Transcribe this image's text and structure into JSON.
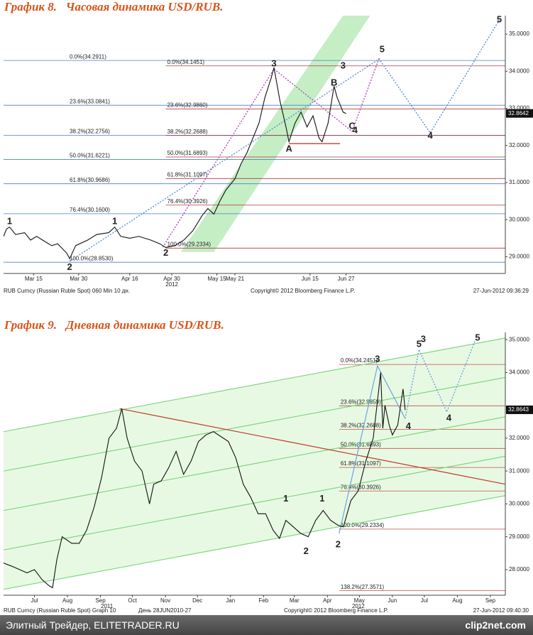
{
  "chart_data": [
    {
      "type": "line",
      "title": "График 8.   Часовая динамика USD/RUB.",
      "xlim": [
        "2012-03-05",
        "2012-08-19"
      ],
      "ylim": [
        28.55,
        35.5
      ],
      "xticks": [
        {
          "value": "2012-03-15",
          "label": "Mar 15"
        },
        {
          "value": "2012-03-30",
          "label": "Mar 30"
        },
        {
          "value": "2012-04-16",
          "label": "Apr 16"
        },
        {
          "value": "2012-04-30",
          "label": "Apr 30"
        },
        {
          "value": "2012-05-15",
          "label": "May 15"
        },
        {
          "value": "2012-05-21",
          "label": "May 21"
        },
        {
          "value": "2012-06-15",
          "label": "Jun 15"
        },
        {
          "value": "2012-06-27",
          "label": "Jun 27"
        }
      ],
      "x_sublabels": [
        {
          "value": "2012-04-30",
          "label": "2012"
        }
      ],
      "yticks": [
        {
          "value": 29,
          "label": "29.0000"
        },
        {
          "value": 30,
          "label": "30.0000"
        },
        {
          "value": 31,
          "label": "31.0000"
        },
        {
          "value": 32,
          "label": "32.0000"
        },
        {
          "value": 33,
          "label": "33.0000"
        },
        {
          "value": 34,
          "label": "34.0000"
        },
        {
          "value": 35,
          "label": "35.0000"
        }
      ],
      "color": "#111111",
      "last_value": 32.8642,
      "x": [
        "2012-03-05",
        "2012-03-06",
        "2012-03-07",
        "2012-03-09",
        "2012-03-12",
        "2012-03-14",
        "2012-03-16",
        "2012-03-19",
        "2012-03-21",
        "2012-03-23",
        "2012-03-26",
        "2012-03-27",
        "2012-03-29",
        "2012-04-02",
        "2012-04-05",
        "2012-04-09",
        "2012-04-11",
        "2012-04-13",
        "2012-04-16",
        "2012-04-19",
        "2012-04-23",
        "2012-04-26",
        "2012-04-28",
        "2012-05-01",
        "2012-05-04",
        "2012-05-07",
        "2012-05-10",
        "2012-05-12",
        "2012-05-14",
        "2012-05-16",
        "2012-05-18",
        "2012-05-21",
        "2012-05-23",
        "2012-05-25",
        "2012-05-27",
        "2012-05-29",
        "2012-05-31",
        "2012-06-02",
        "2012-06-03",
        "2012-06-05",
        "2012-06-07",
        "2012-06-08",
        "2012-06-10",
        "2012-06-12",
        "2012-06-14",
        "2012-06-16",
        "2012-06-18",
        "2012-06-19",
        "2012-06-21",
        "2012-06-23",
        "2012-06-24",
        "2012-06-25",
        "2012-06-26",
        "2012-06-27"
      ],
      "values": [
        29.55,
        29.75,
        29.8,
        29.6,
        29.65,
        29.45,
        29.55,
        29.4,
        29.3,
        29.35,
        29.1,
        28.95,
        29.3,
        29.45,
        29.6,
        29.65,
        29.8,
        29.55,
        29.5,
        29.55,
        29.45,
        29.35,
        29.25,
        29.3,
        29.45,
        29.7,
        30.1,
        30.3,
        30.15,
        30.5,
        30.8,
        31.1,
        31.5,
        31.8,
        32.2,
        32.6,
        33.3,
        33.8,
        34.1,
        33.2,
        32.5,
        32.1,
        32.6,
        32.9,
        32.5,
        32.8,
        32.2,
        32.1,
        32.6,
        33.6,
        33.3,
        33.1,
        32.9,
        32.86
      ],
      "channel": {
        "color": "#9fe39f",
        "x": [
          "2012-05-03",
          "2012-06-26",
          "2012-07-05",
          "2012-05-14"
        ],
        "values": [
          29.13,
          35.5,
          35.5,
          29.13
        ]
      },
      "hlines": [
        {
          "value": 34.2911,
          "label": "0.0%(34.2911)",
          "color": "#4a7fc8"
        },
        {
          "value": 33.0841,
          "label": "23.6%(33.0841)",
          "color": "#4a7fc8"
        },
        {
          "value": 32.2756,
          "label": "38.2%(32.2756)",
          "color": "#4a7fc8"
        },
        {
          "value": 31.6221,
          "label": "50.0%(31.6221)",
          "color": "#4a7fc8"
        },
        {
          "value": 30.9686,
          "label": "61.8%(30.9686)",
          "color": "#4a7fc8"
        },
        {
          "value": 30.16,
          "label": "76.4%(30.1600)",
          "color": "#4a7fc8"
        },
        {
          "value": 28.853,
          "label": "100.0%(28.8530)",
          "color": "#4a7fc8"
        },
        {
          "value": 34.1451,
          "label": "0.0%(34.1451)",
          "color": "#b03a3a",
          "from": "2012-04-28"
        },
        {
          "value": 32.986,
          "label": "23.6%(32.9860)",
          "color": "#b03a3a",
          "from": "2012-04-28"
        },
        {
          "value": 32.2688,
          "label": "38.2%(32.2688)",
          "color": "#b03a3a",
          "from": "2012-04-28"
        },
        {
          "value": 31.6893,
          "label": "50.0%(31.6893)",
          "color": "#b03a3a",
          "from": "2012-04-28"
        },
        {
          "value": 31.1097,
          "label": "61.8%(31.1097)",
          "color": "#b03a3a",
          "from": "2012-04-28"
        },
        {
          "value": 30.3926,
          "label": "76.4%(30.3926)",
          "color": "#b03a3a",
          "from": "2012-04-28"
        },
        {
          "value": 29.2334,
          "label": "100.0%(29.2334)",
          "color": "#b03a3a",
          "from": "2012-04-28"
        }
      ],
      "lines": [
        {
          "color": "#5b8fd6",
          "dash": true,
          "x": [
            "2012-03-27",
            "2012-07-08",
            "2012-07-25",
            "2012-08-17"
          ],
          "values": [
            28.88,
            34.33,
            32.34,
            35.38
          ]
        },
        {
          "color": "#b24ab2",
          "dash": true,
          "x": [
            "2012-04-27",
            "2012-06-03",
            "2012-06-29",
            "2012-07-08"
          ],
          "values": [
            29.26,
            34.06,
            32.38,
            34.35
          ]
        },
        {
          "color": "#c01010",
          "dash": false,
          "x": [
            "2012-06-08",
            "2012-06-25"
          ],
          "values": [
            32.05,
            32.05
          ]
        }
      ],
      "annotations": [
        {
          "text": "1",
          "x": "2012-03-07",
          "y": 29.95,
          "color": "#5b8fd6"
        },
        {
          "text": "2",
          "x": "2012-03-27",
          "y": 28.71,
          "color": "#5b8fd6"
        },
        {
          "text": "1",
          "x": "2012-04-11",
          "y": 29.95,
          "color": "#b24ab2"
        },
        {
          "text": "2",
          "x": "2012-04-28",
          "y": 29.09,
          "color": "#b24ab2"
        },
        {
          "text": "3",
          "x": "2012-06-03",
          "y": 34.2,
          "color": "#b24ab2"
        },
        {
          "text": "3",
          "x": "2012-06-26",
          "y": 34.14,
          "color": "#5b8fd6"
        },
        {
          "text": "4",
          "x": "2012-06-30",
          "y": 32.4,
          "color": "#b24ab2"
        },
        {
          "text": "5",
          "x": "2012-07-09",
          "y": 34.58,
          "color": "#b24ab2"
        },
        {
          "text": "4",
          "x": "2012-07-25",
          "y": 32.25,
          "color": "#5b8fd6"
        },
        {
          "text": "5",
          "x": "2012-08-17",
          "y": 35.38,
          "color": "#5b8fd6"
        },
        {
          "text": "A",
          "x": "2012-06-08",
          "y": 31.9,
          "color": "#c01010"
        },
        {
          "text": "B",
          "x": "2012-06-23",
          "y": 33.68,
          "color": "#c01010"
        },
        {
          "text": "C",
          "x": "2012-06-29",
          "y": 32.51,
          "color": "#c01010"
        }
      ],
      "footer": [
        "RUB Curncy (Russian Ruble Spot) 060 Min 10 дн.",
        "Copyright© 2012 Bloomberg Finance L.P.",
        "27-Jun-2012 09:36:29"
      ]
    },
    {
      "type": "line",
      "title": "График 9.   Дневная динамика USD/RUB.",
      "xlim": [
        "2011-06-16",
        "2012-09-29"
      ],
      "ylim": [
        27.22,
        35.22
      ],
      "xticks": [
        {
          "value": "2011-07-15",
          "label": "Jul"
        },
        {
          "value": "2011-08-15",
          "label": "Aug"
        },
        {
          "value": "2011-09-15",
          "label": "Sep"
        },
        {
          "value": "2011-10-15",
          "label": "Oct"
        },
        {
          "value": "2011-11-15",
          "label": "Nov"
        },
        {
          "value": "2011-12-15",
          "label": "Dec"
        },
        {
          "value": "2012-01-15",
          "label": "Jan"
        },
        {
          "value": "2012-02-15",
          "label": "Feb"
        },
        {
          "value": "2012-03-15",
          "label": "Mar"
        },
        {
          "value": "2012-04-15",
          "label": "Apr"
        },
        {
          "value": "2012-05-15",
          "label": "May"
        },
        {
          "value": "2012-06-15",
          "label": "Jun"
        },
        {
          "value": "2012-07-15",
          "label": "Jul"
        },
        {
          "value": "2012-08-15",
          "label": "Aug"
        },
        {
          "value": "2012-09-15",
          "label": "Sep"
        }
      ],
      "x_sublabels": [
        {
          "value": "2011-09-21",
          "label": "2011"
        },
        {
          "value": "2012-05-14",
          "label": "2012"
        }
      ],
      "yticks": [
        {
          "value": 28,
          "label": "28.0000"
        },
        {
          "value": 29,
          "label": "29.0000"
        },
        {
          "value": 30,
          "label": "30.0000"
        },
        {
          "value": 31,
          "label": "31.0000"
        },
        {
          "value": 32,
          "label": "32.0000"
        },
        {
          "value": 34,
          "label": "34.0000"
        },
        {
          "value": 35,
          "label": "35.0000"
        }
      ],
      "color": "#111111",
      "last_value": 32.8643,
      "x": [
        "2011-06-16",
        "2011-06-24",
        "2011-07-01",
        "2011-07-08",
        "2011-07-15",
        "2011-07-22",
        "2011-07-29",
        "2011-08-01",
        "2011-08-05",
        "2011-08-10",
        "2011-08-19",
        "2011-08-26",
        "2011-09-02",
        "2011-09-09",
        "2011-09-16",
        "2011-09-23",
        "2011-09-30",
        "2011-10-05",
        "2011-10-10",
        "2011-10-17",
        "2011-10-24",
        "2011-10-31",
        "2011-11-04",
        "2011-11-11",
        "2011-11-18",
        "2011-11-25",
        "2011-12-02",
        "2011-12-09",
        "2011-12-16",
        "2011-12-23",
        "2011-12-30",
        "2012-01-13",
        "2012-01-20",
        "2012-01-27",
        "2012-02-03",
        "2012-02-10",
        "2012-02-17",
        "2012-02-24",
        "2012-03-01",
        "2012-03-07",
        "2012-03-14",
        "2012-03-21",
        "2012-03-28",
        "2012-04-04",
        "2012-04-11",
        "2012-04-18",
        "2012-04-25",
        "2012-04-30",
        "2012-05-07",
        "2012-05-14",
        "2012-05-21",
        "2012-05-28",
        "2012-06-04",
        "2012-06-06",
        "2012-06-08",
        "2012-06-12",
        "2012-06-15",
        "2012-06-20",
        "2012-06-25",
        "2012-06-27"
      ],
      "values": [
        28.2,
        28.1,
        28.0,
        27.9,
        28.0,
        27.7,
        27.5,
        27.45,
        28.3,
        29.0,
        28.8,
        28.8,
        29.2,
        29.9,
        30.8,
        32.0,
        32.3,
        32.9,
        32.0,
        31.3,
        31.0,
        30.0,
        30.6,
        30.7,
        31.1,
        31.6,
        30.9,
        31.3,
        31.9,
        32.1,
        32.2,
        31.9,
        31.4,
        30.6,
        30.2,
        29.7,
        29.7,
        29.2,
        28.95,
        29.5,
        29.3,
        29.1,
        29.0,
        29.5,
        29.8,
        29.5,
        29.35,
        29.3,
        30.1,
        30.4,
        31.3,
        32.0,
        34.0,
        32.3,
        33.0,
        32.4,
        32.1,
        32.4,
        33.5,
        32.86
      ],
      "channel": {
        "color": "#d8f5d0",
        "x": [
          "2011-06-16",
          "2012-09-29",
          "2012-09-29",
          "2011-06-16"
        ],
        "values": [
          32.2,
          35.05,
          30.25,
          27.4
        ]
      },
      "hlines": [
        {
          "value": 34.2451,
          "label": "0.0%(34.2451)",
          "color": "#c0504d",
          "from": "2012-04-26"
        },
        {
          "value": 32.9859,
          "label": "23.6%(32.9859)",
          "color": "#c0504d",
          "from": "2012-04-26"
        },
        {
          "value": 32.2688,
          "label": "38.2%(32.2688)",
          "color": "#c0504d",
          "from": "2012-04-26"
        },
        {
          "value": 31.6893,
          "label": "50.0%(31.6893)",
          "color": "#c0504d",
          "from": "2012-04-26"
        },
        {
          "value": 31.1097,
          "label": "61.8%(31.1097)",
          "color": "#c0504d",
          "from": "2012-04-26"
        },
        {
          "value": 30.3926,
          "label": "76.4%(30.3926)",
          "color": "#c0504d",
          "from": "2012-04-26"
        },
        {
          "value": 29.2334,
          "label": "100.0%(29.2334)",
          "color": "#c0504d",
          "from": "2012-04-26"
        },
        {
          "value": 27.3571,
          "label": "138.2%(27.3571)",
          "color": "#c0504d",
          "from": "2012-04-26"
        }
      ],
      "lines": [
        {
          "color": "#7fd67f",
          "dash": false,
          "x": [
            "2011-06-16",
            "2012-09-29"
          ],
          "values": [
            32.2,
            35.05
          ]
        },
        {
          "color": "#7fd67f",
          "dash": false,
          "x": [
            "2011-06-16",
            "2012-09-29"
          ],
          "values": [
            31.0,
            33.85
          ]
        },
        {
          "color": "#7fd67f",
          "dash": false,
          "x": [
            "2011-06-16",
            "2012-09-29"
          ],
          "values": [
            29.8,
            32.65
          ]
        },
        {
          "color": "#7fd67f",
          "dash": false,
          "x": [
            "2011-06-16",
            "2012-09-29"
          ],
          "values": [
            28.6,
            31.45
          ]
        },
        {
          "color": "#7fd67f",
          "dash": false,
          "x": [
            "2011-06-16",
            "2012-09-29"
          ],
          "values": [
            27.4,
            30.25
          ]
        },
        {
          "color": "#c0392b",
          "dash": false,
          "x": [
            "2011-10-03",
            "2012-09-29"
          ],
          "values": [
            32.9,
            30.6
          ]
        },
        {
          "color": "#6aa3e0",
          "dash": false,
          "x": [
            "2012-04-26",
            "2012-06-01",
            "2012-06-27"
          ],
          "values": [
            29.1,
            34.2,
            32.6
          ]
        },
        {
          "color": "#6aa3e0",
          "dash": true,
          "x": [
            "2012-06-27",
            "2012-07-10",
            "2012-08-05",
            "2012-09-01"
          ],
          "values": [
            32.6,
            34.7,
            32.8,
            35.0
          ]
        }
      ],
      "annotations": [
        {
          "text": "1",
          "x": "2012-03-07",
          "y": 30.15,
          "color": "#c01010"
        },
        {
          "text": "2",
          "x": "2012-03-26",
          "y": 28.55,
          "color": "#c01010"
        },
        {
          "text": "1",
          "x": "2012-04-10",
          "y": 30.15,
          "color": "#6aa3e0"
        },
        {
          "text": "2",
          "x": "2012-04-25",
          "y": 28.75,
          "color": "#6aa3e0"
        },
        {
          "text": "3",
          "x": "2012-06-01",
          "y": 34.4,
          "color": "#6aa3e0"
        },
        {
          "text": "4",
          "x": "2012-06-30",
          "y": 32.35,
          "color": "#6aa3e0"
        },
        {
          "text": "5",
          "x": "2012-07-10",
          "y": 34.85,
          "color": "#6aa3e0"
        },
        {
          "text": "3",
          "x": "2012-07-14",
          "y": 35.0,
          "color": "#c01010"
        },
        {
          "text": "4",
          "x": "2012-08-07",
          "y": 32.6,
          "color": "#c01010"
        },
        {
          "text": "5",
          "x": "2012-09-03",
          "y": 35.05,
          "color": "#c01010"
        }
      ],
      "footer": [
        "RUB Curncy (Russian Ruble Spot) Graph 10",
        "День 28JUN2010-27",
        "Copyright© 2012 Bloomberg Finance L.P.",
        "27-Jun-2012 09:40:30"
      ]
    }
  ],
  "footer": {
    "left": "Элитный Трейдер, ELITETRADER.RU",
    "right": "clip2net.com"
  }
}
